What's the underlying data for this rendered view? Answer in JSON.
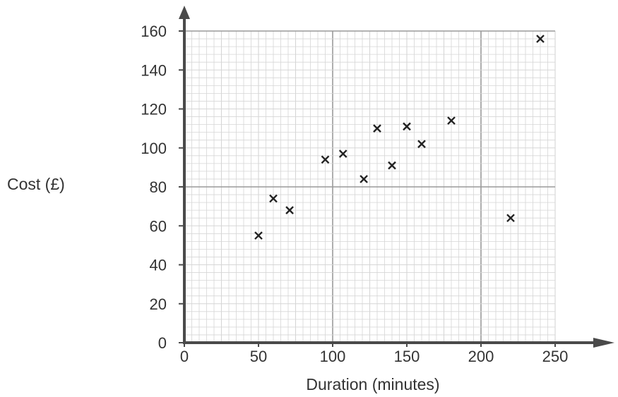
{
  "chart_data": {
    "type": "scatter",
    "xlabel": "Duration (minutes)",
    "ylabel": "Cost (£)",
    "xlim": [
      0,
      250
    ],
    "ylim": [
      0,
      160
    ],
    "x_ticks": [
      0,
      50,
      100,
      150,
      200,
      250
    ],
    "y_ticks": [
      0,
      20,
      40,
      60,
      80,
      100,
      120,
      140,
      160
    ],
    "grid": true,
    "marker": "cross",
    "points": [
      {
        "x": 50,
        "y": 55
      },
      {
        "x": 60,
        "y": 74
      },
      {
        "x": 71,
        "y": 68
      },
      {
        "x": 95,
        "y": 94
      },
      {
        "x": 107,
        "y": 97
      },
      {
        "x": 121,
        "y": 84
      },
      {
        "x": 130,
        "y": 110
      },
      {
        "x": 140,
        "y": 91
      },
      {
        "x": 150,
        "y": 111
      },
      {
        "x": 160,
        "y": 102
      },
      {
        "x": 180,
        "y": 114
      },
      {
        "x": 220,
        "y": 64
      },
      {
        "x": 240,
        "y": 156
      }
    ]
  },
  "colors": {
    "axis": "#4a4a4a",
    "grid_minor": "#d6d6d6",
    "grid_major": "#9a9a9a",
    "marker": "#222222",
    "text": "#333333"
  }
}
